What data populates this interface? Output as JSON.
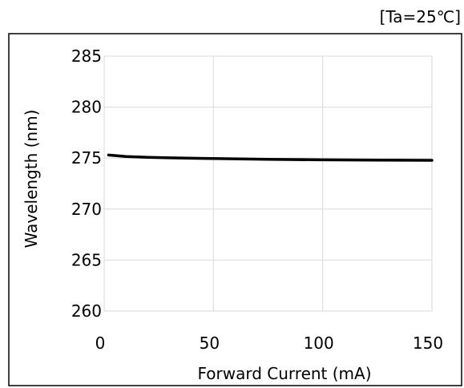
{
  "condition_note": "[Ta=25℃]",
  "colors": {
    "line": "#000000",
    "grid": "#d9d9d9",
    "frame": "#000000",
    "background": "#ffffff"
  },
  "chart_data": {
    "type": "line",
    "title": "",
    "xlabel": "Forward Current (mA)",
    "ylabel": "Wavelength (nm)",
    "xlim": [
      0,
      150
    ],
    "ylim": [
      260,
      285
    ],
    "x_ticks": [
      0,
      50,
      100,
      150
    ],
    "y_ticks": [
      260,
      265,
      270,
      275,
      280,
      285
    ],
    "grid": true,
    "legend": "none",
    "series": [
      {
        "x": [
          2,
          10,
          20,
          30,
          50,
          75,
          100,
          125,
          150
        ],
        "y": [
          275.3,
          275.15,
          275.08,
          275.02,
          274.95,
          274.88,
          274.83,
          274.8,
          274.78
        ]
      }
    ]
  }
}
